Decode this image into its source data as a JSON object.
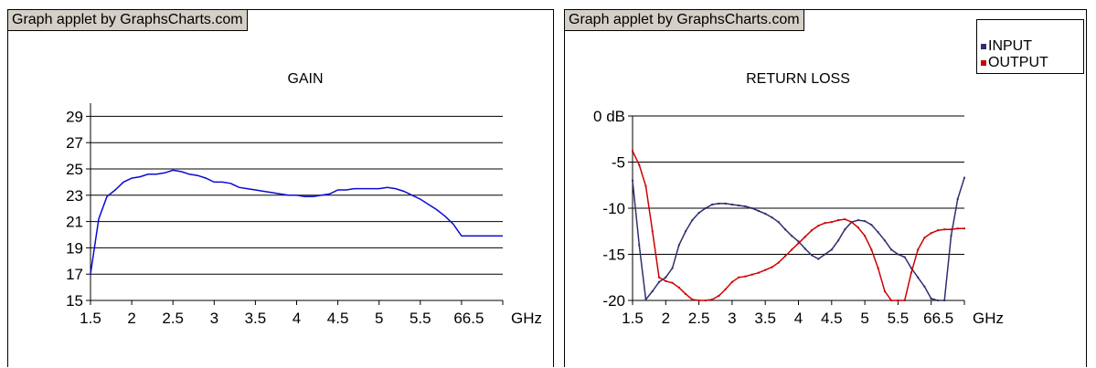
{
  "panels": [
    {
      "applet_label": "Graph applet by GraphsCharts.com"
    },
    {
      "applet_label": "Graph applet by GraphsCharts.com"
    }
  ],
  "chart_data": [
    {
      "type": "line",
      "title": "GAIN",
      "xlabel": "",
      "ylabel": "",
      "x_ticks": [
        "1.5",
        "2",
        "2.5",
        "3",
        "3.5",
        "4",
        "4.5",
        "5",
        "5.5",
        "66.5",
        "GHz"
      ],
      "y_ticks": [
        "29",
        "27",
        "25",
        "23",
        "21",
        "19",
        "17",
        "15"
      ],
      "ylim": [
        15,
        30
      ],
      "xlim": [
        1.5,
        6.5
      ],
      "grid": true,
      "colors": {
        "series": "#0a0ad2"
      },
      "series": [
        {
          "x": [
            1.5,
            1.6,
            1.7,
            1.8,
            1.9,
            2.0,
            2.1,
            2.2,
            2.3,
            2.4,
            2.5,
            2.6,
            2.7,
            2.8,
            2.9,
            3.0,
            3.1,
            3.2,
            3.3,
            3.4,
            3.5,
            3.6,
            3.7,
            3.8,
            3.9,
            4.0,
            4.1,
            4.2,
            4.3,
            4.4,
            4.5,
            4.6,
            4.7,
            4.8,
            4.9,
            5.0,
            5.1,
            5.2,
            5.3,
            5.4,
            5.5,
            5.6,
            5.7,
            5.8,
            5.9,
            6.0,
            6.1,
            6.2,
            6.3,
            6.4,
            6.5
          ],
          "values": [
            17.0,
            21.2,
            22.9,
            23.4,
            24.0,
            24.3,
            24.4,
            24.6,
            24.6,
            24.7,
            24.9,
            24.8,
            24.6,
            24.5,
            24.3,
            24.0,
            24.0,
            23.9,
            23.6,
            23.5,
            23.4,
            23.3,
            23.2,
            23.1,
            23.0,
            23.0,
            22.9,
            22.9,
            23.0,
            23.1,
            23.4,
            23.4,
            23.5,
            23.5,
            23.5,
            23.5,
            23.6,
            23.5,
            23.3,
            23.0,
            22.7,
            22.3,
            21.9,
            21.4,
            20.8,
            19.9,
            19.9,
            19.9,
            19.9,
            19.9,
            19.9
          ]
        }
      ]
    },
    {
      "type": "line",
      "title": "RETURN LOSS",
      "xlabel": "",
      "ylabel": "",
      "x_ticks": [
        "1.5",
        "2",
        "2.5",
        "3",
        "3.5",
        "4",
        "4.5",
        "5",
        "5.5",
        "66.5",
        "GHz"
      ],
      "y_ticks": [
        "0 dB",
        "-5",
        "-10",
        "-15",
        "-20"
      ],
      "ylim": [
        -20,
        0
      ],
      "xlim": [
        1.5,
        6.5
      ],
      "grid": true,
      "legend_position": "top-right",
      "series": [
        {
          "name": "INPUT",
          "color": "#2e2f6e",
          "x": [
            1.5,
            1.6,
            1.7,
            1.8,
            1.9,
            2.0,
            2.1,
            2.2,
            2.3,
            2.4,
            2.5,
            2.6,
            2.7,
            2.8,
            2.9,
            3.0,
            3.1,
            3.2,
            3.3,
            3.4,
            3.5,
            3.6,
            3.7,
            3.8,
            3.9,
            4.0,
            4.1,
            4.2,
            4.3,
            4.4,
            4.5,
            4.6,
            4.7,
            4.8,
            4.9,
            5.0,
            5.1,
            5.2,
            5.3,
            5.4,
            5.5,
            5.6,
            5.7,
            5.8,
            5.9,
            6.0,
            6.1,
            6.2,
            6.3,
            6.4,
            6.5
          ],
          "values": [
            -7.0,
            -14.0,
            -19.9,
            -19.0,
            -18.0,
            -17.5,
            -16.5,
            -14.0,
            -12.5,
            -11.3,
            -10.5,
            -10.0,
            -9.6,
            -9.5,
            -9.5,
            -9.6,
            -9.7,
            -9.8,
            -10.0,
            -10.3,
            -10.6,
            -11.0,
            -11.5,
            -12.3,
            -13.0,
            -13.6,
            -14.4,
            -15.1,
            -15.5,
            -15.0,
            -14.5,
            -13.5,
            -12.3,
            -11.5,
            -11.3,
            -11.4,
            -11.8,
            -12.6,
            -13.5,
            -14.5,
            -15.0,
            -15.3,
            -16.5,
            -17.5,
            -18.5,
            -19.8,
            -20.0,
            -20.0,
            -13.0,
            -9.0,
            -6.7
          ]
        },
        {
          "name": "OUTPUT",
          "color": "#cc0000",
          "x": [
            1.5,
            1.6,
            1.7,
            1.8,
            1.9,
            2.0,
            2.1,
            2.2,
            2.3,
            2.4,
            2.5,
            2.6,
            2.7,
            2.8,
            2.9,
            3.0,
            3.1,
            3.2,
            3.3,
            3.4,
            3.5,
            3.6,
            3.7,
            3.8,
            3.9,
            4.0,
            4.1,
            4.2,
            4.3,
            4.4,
            4.5,
            4.6,
            4.7,
            4.8,
            4.9,
            5.0,
            5.1,
            5.2,
            5.3,
            5.4,
            5.5,
            5.6,
            5.7,
            5.8,
            5.9,
            6.0,
            6.1,
            6.2,
            6.3,
            6.4,
            6.5
          ],
          "values": [
            -3.8,
            -5.3,
            -7.6,
            -12.5,
            -17.5,
            -17.9,
            -18.1,
            -18.6,
            -19.3,
            -19.9,
            -20.0,
            -20.0,
            -19.9,
            -19.5,
            -18.8,
            -18.0,
            -17.5,
            -17.4,
            -17.2,
            -17.0,
            -16.7,
            -16.4,
            -15.9,
            -15.2,
            -14.5,
            -13.8,
            -13.1,
            -12.4,
            -11.9,
            -11.6,
            -11.5,
            -11.3,
            -11.2,
            -11.5,
            -12.1,
            -13.0,
            -14.5,
            -16.5,
            -19.0,
            -20.0,
            -20.0,
            -20.0,
            -17.0,
            -14.5,
            -13.2,
            -12.7,
            -12.4,
            -12.3,
            -12.3,
            -12.2,
            -12.2
          ]
        }
      ]
    }
  ]
}
